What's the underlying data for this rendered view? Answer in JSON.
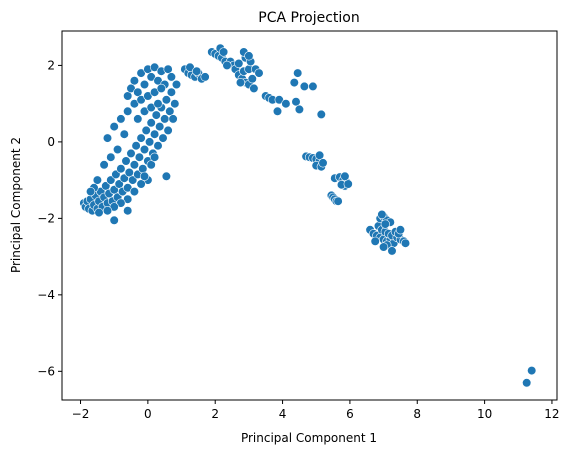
{
  "chart_data": {
    "type": "scatter",
    "title": "PCA Projection",
    "xlabel": "Principal Component 1",
    "ylabel": "Principal Component 2",
    "xlim": [
      -2.55,
      12.15
    ],
    "ylim": [
      -6.75,
      2.9
    ],
    "xticks": [
      -2,
      0,
      2,
      4,
      6,
      8,
      10,
      12
    ],
    "yticks": [
      -6,
      -4,
      -2,
      0,
      2
    ],
    "grid": false,
    "legend": "none",
    "marker_color": "#1f77b4",
    "marker_edge": "#ffffff",
    "series": [
      {
        "points": [
          [
            -1.9,
            -1.6
          ],
          [
            -1.85,
            -1.7
          ],
          [
            -1.8,
            -1.55
          ],
          [
            -1.75,
            -1.75
          ],
          [
            -1.7,
            -1.5
          ],
          [
            -1.65,
            -1.8
          ],
          [
            -1.6,
            -1.65
          ],
          [
            -1.55,
            -1.4
          ],
          [
            -1.5,
            -1.75
          ],
          [
            -1.45,
            -1.55
          ],
          [
            -1.4,
            -1.3
          ],
          [
            -1.35,
            -1.7
          ],
          [
            -1.3,
            -1.45
          ],
          [
            -1.25,
            -1.15
          ],
          [
            -1.2,
            -1.6
          ],
          [
            -1.15,
            -1.35
          ],
          [
            -1.1,
            -1.0
          ],
          [
            -1.05,
            -1.55
          ],
          [
            -1.0,
            -1.25
          ],
          [
            -0.95,
            -0.85
          ],
          [
            -0.9,
            -1.45
          ],
          [
            -0.85,
            -1.1
          ],
          [
            -0.8,
            -0.7
          ],
          [
            -0.75,
            -1.3
          ],
          [
            -0.7,
            -0.95
          ],
          [
            -0.65,
            -0.5
          ],
          [
            -0.6,
            -1.2
          ],
          [
            -0.55,
            -0.8
          ],
          [
            -0.5,
            -0.3
          ],
          [
            -0.45,
            -1.0
          ],
          [
            -0.4,
            -0.6
          ],
          [
            -0.35,
            -0.1
          ],
          [
            -0.3,
            -0.85
          ],
          [
            -0.25,
            -0.4
          ],
          [
            -0.2,
            0.1
          ],
          [
            -0.15,
            -0.7
          ],
          [
            -0.1,
            -0.2
          ],
          [
            -0.05,
            0.3
          ],
          [
            0.0,
            -0.5
          ],
          [
            0.05,
            0.0
          ],
          [
            0.1,
            0.5
          ],
          [
            0.15,
            -0.3
          ],
          [
            0.2,
            0.2
          ],
          [
            0.25,
            0.7
          ],
          [
            0.3,
            -0.1
          ],
          [
            0.35,
            0.4
          ],
          [
            0.4,
            0.9
          ],
          [
            0.45,
            0.1
          ],
          [
            0.5,
            0.6
          ],
          [
            0.55,
            1.1
          ],
          [
            0.6,
            0.3
          ],
          [
            0.65,
            0.8
          ],
          [
            0.7,
            1.3
          ],
          [
            0.75,
            0.6
          ],
          [
            0.8,
            1.0
          ],
          [
            0.85,
            1.5
          ],
          [
            -0.6,
            1.2
          ],
          [
            -0.5,
            1.4
          ],
          [
            -0.4,
            1.6
          ],
          [
            -0.3,
            1.3
          ],
          [
            -0.2,
            1.8
          ],
          [
            -0.1,
            1.5
          ],
          [
            0.0,
            1.9
          ],
          [
            0.1,
            1.7
          ],
          [
            0.2,
            1.95
          ],
          [
            0.3,
            1.6
          ],
          [
            0.4,
            1.85
          ],
          [
            0.5,
            1.5
          ],
          [
            0.6,
            1.9
          ],
          [
            0.7,
            1.7
          ],
          [
            -1.2,
            0.1
          ],
          [
            -1.0,
            0.4
          ],
          [
            -0.8,
            0.6
          ],
          [
            -0.7,
            0.2
          ],
          [
            -0.9,
            -0.2
          ],
          [
            -1.3,
            -0.6
          ],
          [
            -1.5,
            -1.0
          ],
          [
            -1.6,
            -1.2
          ],
          [
            -1.7,
            -1.3
          ],
          [
            -1.1,
            -0.4
          ],
          [
            -0.6,
            0.8
          ],
          [
            -0.4,
            1.0
          ],
          [
            -0.2,
            1.1
          ],
          [
            0.0,
            1.2
          ],
          [
            0.2,
            1.3
          ],
          [
            0.4,
            1.4
          ],
          [
            -0.3,
            0.6
          ],
          [
            -0.1,
            0.8
          ],
          [
            0.1,
            0.9
          ],
          [
            0.3,
            1.0
          ],
          [
            0.0,
            -1.0
          ],
          [
            -0.2,
            -1.1
          ],
          [
            -0.4,
            -1.3
          ],
          [
            -0.6,
            -1.5
          ],
          [
            -0.8,
            -1.6
          ],
          [
            -1.0,
            -1.7
          ],
          [
            -1.2,
            -1.8
          ],
          [
            -0.1,
            -0.9
          ],
          [
            0.1,
            -0.6
          ],
          [
            0.2,
            -0.4
          ],
          [
            0.55,
            -0.9
          ],
          [
            -1.0,
            -2.05
          ],
          [
            -0.6,
            -1.8
          ],
          [
            -1.45,
            -1.85
          ],
          [
            1.1,
            1.9
          ],
          [
            1.2,
            1.8
          ],
          [
            1.3,
            1.75
          ],
          [
            1.4,
            1.7
          ],
          [
            1.5,
            1.8
          ],
          [
            1.6,
            1.65
          ],
          [
            1.7,
            1.7
          ],
          [
            1.25,
            1.95
          ],
          [
            1.45,
            1.85
          ],
          [
            1.9,
            2.35
          ],
          [
            2.0,
            2.3
          ],
          [
            2.1,
            2.25
          ],
          [
            2.2,
            2.2
          ],
          [
            2.15,
            2.45
          ],
          [
            2.3,
            2.1
          ],
          [
            2.45,
            2.1
          ],
          [
            2.55,
            2.0
          ],
          [
            2.35,
            2.0
          ],
          [
            2.25,
            2.35
          ],
          [
            2.6,
            1.9
          ],
          [
            2.7,
            1.75
          ],
          [
            2.8,
            1.65
          ],
          [
            2.9,
            1.55
          ],
          [
            3.0,
            1.5
          ],
          [
            3.1,
            1.65
          ],
          [
            2.85,
            1.85
          ],
          [
            3.0,
            1.9
          ],
          [
            2.7,
            2.05
          ],
          [
            2.9,
            2.2
          ],
          [
            3.05,
            2.1
          ],
          [
            3.2,
            1.9
          ],
          [
            3.3,
            1.8
          ],
          [
            2.85,
            2.35
          ],
          [
            3.0,
            2.25
          ],
          [
            2.75,
            1.55
          ],
          [
            3.15,
            1.4
          ],
          [
            3.5,
            1.2
          ],
          [
            3.6,
            1.15
          ],
          [
            3.7,
            1.1
          ],
          [
            3.9,
            1.1
          ],
          [
            4.1,
            1.0
          ],
          [
            3.85,
            0.8
          ],
          [
            4.4,
            1.05
          ],
          [
            4.35,
            1.55
          ],
          [
            4.45,
            1.8
          ],
          [
            4.65,
            1.45
          ],
          [
            4.5,
            0.85
          ],
          [
            4.9,
            1.45
          ],
          [
            5.15,
            0.72
          ],
          [
            4.7,
            -0.38
          ],
          [
            4.8,
            -0.4
          ],
          [
            4.9,
            -0.42
          ],
          [
            5.0,
            -0.45
          ],
          [
            5.1,
            -0.5
          ],
          [
            5.0,
            -0.62
          ],
          [
            5.15,
            -0.65
          ],
          [
            5.1,
            -0.35
          ],
          [
            5.2,
            -0.55
          ],
          [
            5.45,
            -1.4
          ],
          [
            5.5,
            -1.45
          ],
          [
            5.55,
            -1.5
          ],
          [
            5.6,
            -1.55
          ],
          [
            5.65,
            -1.55
          ],
          [
            5.55,
            -0.95
          ],
          [
            5.7,
            -0.92
          ],
          [
            5.8,
            -1.0
          ],
          [
            5.9,
            -1.05
          ],
          [
            5.85,
            -1.15
          ],
          [
            5.75,
            -1.12
          ],
          [
            5.95,
            -1.1
          ],
          [
            5.85,
            -0.9
          ],
          [
            6.6,
            -2.3
          ],
          [
            6.7,
            -2.4
          ],
          [
            6.8,
            -2.45
          ],
          [
            6.9,
            -2.5
          ],
          [
            7.0,
            -2.55
          ],
          [
            7.1,
            -2.6
          ],
          [
            7.2,
            -2.55
          ],
          [
            7.3,
            -2.65
          ],
          [
            7.1,
            -2.7
          ],
          [
            7.0,
            -2.75
          ],
          [
            6.85,
            -2.2
          ],
          [
            6.95,
            -2.3
          ],
          [
            7.05,
            -2.35
          ],
          [
            7.15,
            -2.4
          ],
          [
            7.25,
            -2.45
          ],
          [
            7.4,
            -2.5
          ],
          [
            7.5,
            -2.55
          ],
          [
            7.6,
            -2.6
          ],
          [
            7.35,
            -2.35
          ],
          [
            7.45,
            -2.4
          ],
          [
            6.9,
            -2.0
          ],
          [
            7.0,
            -1.95
          ],
          [
            7.1,
            -2.05
          ],
          [
            7.2,
            -2.1
          ],
          [
            6.95,
            -1.9
          ],
          [
            7.05,
            -2.15
          ],
          [
            7.25,
            -2.85
          ],
          [
            6.75,
            -2.6
          ],
          [
            7.5,
            -2.3
          ],
          [
            7.65,
            -2.65
          ],
          [
            11.25,
            -6.3
          ],
          [
            11.4,
            -5.98
          ]
        ]
      }
    ]
  }
}
